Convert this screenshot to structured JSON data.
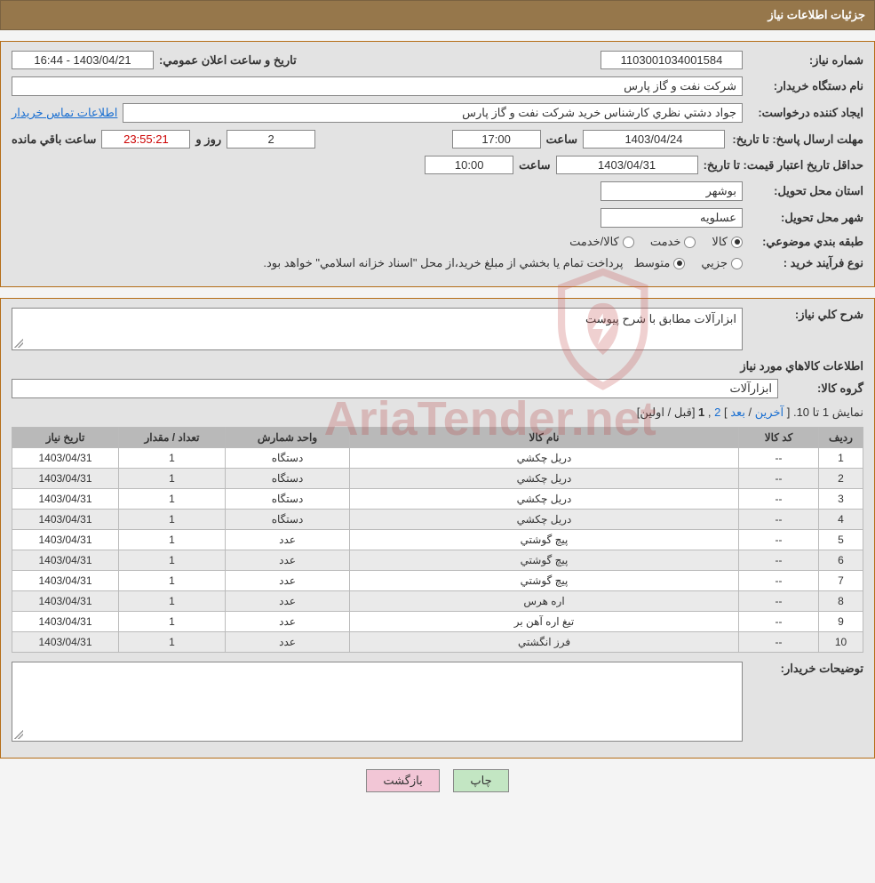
{
  "header_title": "جزئيات اطلاعات نياز",
  "fields": {
    "need_no_label": "شماره نياز:",
    "need_no": "1103001034001584",
    "announce_label": "تاريخ و ساعت اعلان عمومي:",
    "announce_val": "1403/04/21 - 16:44",
    "buyer_label": "نام دستگاه خريدار:",
    "buyer_val": "شركت نفت و گاز پارس",
    "requester_label": "ايجاد كننده درخواست:",
    "requester_val": "جواد دشتي نظري كارشناس خريد  شركت نفت و گاز پارس",
    "contact_link": "اطلاعات تماس خريدار",
    "response_deadline_label": "مهلت ارسال پاسخ: تا تاريخ:",
    "response_date": "1403/04/24",
    "time_label": "ساعت",
    "response_time": "17:00",
    "days_left": "2",
    "day_and_label": "روز و",
    "countdown": "23:55:21",
    "remaining_label": "ساعت باقي مانده",
    "validity_label": "حداقل تاريخ اعتبار قيمت: تا تاريخ:",
    "validity_date": "1403/04/31",
    "validity_time": "10:00",
    "province_label": "استان محل تحويل:",
    "province_val": "بوشهر",
    "city_label": "شهر محل تحويل:",
    "city_val": "عسلويه",
    "category_label": "طبقه بندي موضوعي:",
    "cat_goods": "كالا",
    "cat_service": "خدمت",
    "cat_goodservice": "كالا/خدمت",
    "process_label": "نوع فرآيند خريد :",
    "proc_partial": "جزيي",
    "proc_medium": "متوسط",
    "process_note": "پرداخت تمام يا بخشي از مبلغ خريد،از محل \"اسناد خزانه اسلامي\" خواهد بود.",
    "need_desc_label": "شرح كلي نياز:",
    "need_desc_val": "ابزارآلات مطابق با شرح پيوست",
    "goods_info_title": "اطلاعات كالاهاي مورد نياز",
    "goods_group_label": "گروه كالا:",
    "goods_group_val": "ابزارآلات",
    "pagination_text": "نمايش 1 تا 10. [ ",
    "pg_last": "آخرين",
    "pg_sep": " / ",
    "pg_next": "بعد",
    "pg_bracket_end": " ] ",
    "pg_2": "2",
    "pg_1": "1",
    "pg_prev_first": " [قبل / اولين]",
    "buyer_notes_label": "توضيحات خريدار:",
    "btn_print": "چاپ",
    "btn_back": "بازگشت"
  },
  "table": {
    "headers": {
      "row": "رديف",
      "code": "كد كالا",
      "name": "نام كالا",
      "unit": "واحد شمارش",
      "qty": "تعداد / مقدار",
      "date": "تاريخ نياز"
    },
    "rows": [
      {
        "n": "1",
        "code": "--",
        "name": "دريل چكشي",
        "unit": "دستگاه",
        "qty": "1",
        "date": "1403/04/31"
      },
      {
        "n": "2",
        "code": "--",
        "name": "دريل چكشي",
        "unit": "دستگاه",
        "qty": "1",
        "date": "1403/04/31"
      },
      {
        "n": "3",
        "code": "--",
        "name": "دريل چكشي",
        "unit": "دستگاه",
        "qty": "1",
        "date": "1403/04/31"
      },
      {
        "n": "4",
        "code": "--",
        "name": "دريل چكشي",
        "unit": "دستگاه",
        "qty": "1",
        "date": "1403/04/31"
      },
      {
        "n": "5",
        "code": "--",
        "name": "پيچ گوشتي",
        "unit": "عدد",
        "qty": "1",
        "date": "1403/04/31"
      },
      {
        "n": "6",
        "code": "--",
        "name": "پيچ گوشتي",
        "unit": "عدد",
        "qty": "1",
        "date": "1403/04/31"
      },
      {
        "n": "7",
        "code": "--",
        "name": "پيچ گوشتي",
        "unit": "عدد",
        "qty": "1",
        "date": "1403/04/31"
      },
      {
        "n": "8",
        "code": "--",
        "name": "اره هرس",
        "unit": "عدد",
        "qty": "1",
        "date": "1403/04/31"
      },
      {
        "n": "9",
        "code": "--",
        "name": "تيغ اره آهن بر",
        "unit": "عدد",
        "qty": "1",
        "date": "1403/04/31"
      },
      {
        "n": "10",
        "code": "--",
        "name": "فرز انگشتي",
        "unit": "عدد",
        "qty": "1",
        "date": "1403/04/31"
      }
    ]
  },
  "colors": {
    "header_bg": "#96774b",
    "panel_border": "#b56e18",
    "panel_bg": "#e3e3e3",
    "link": "#1a6fd1",
    "th_bg": "#b9b9b9",
    "btn_print_bg": "#c3e6c3",
    "btn_back_bg": "#f2c6d6",
    "watermark_color": "#b94d4d"
  },
  "watermark_text": "AriaTender.net"
}
